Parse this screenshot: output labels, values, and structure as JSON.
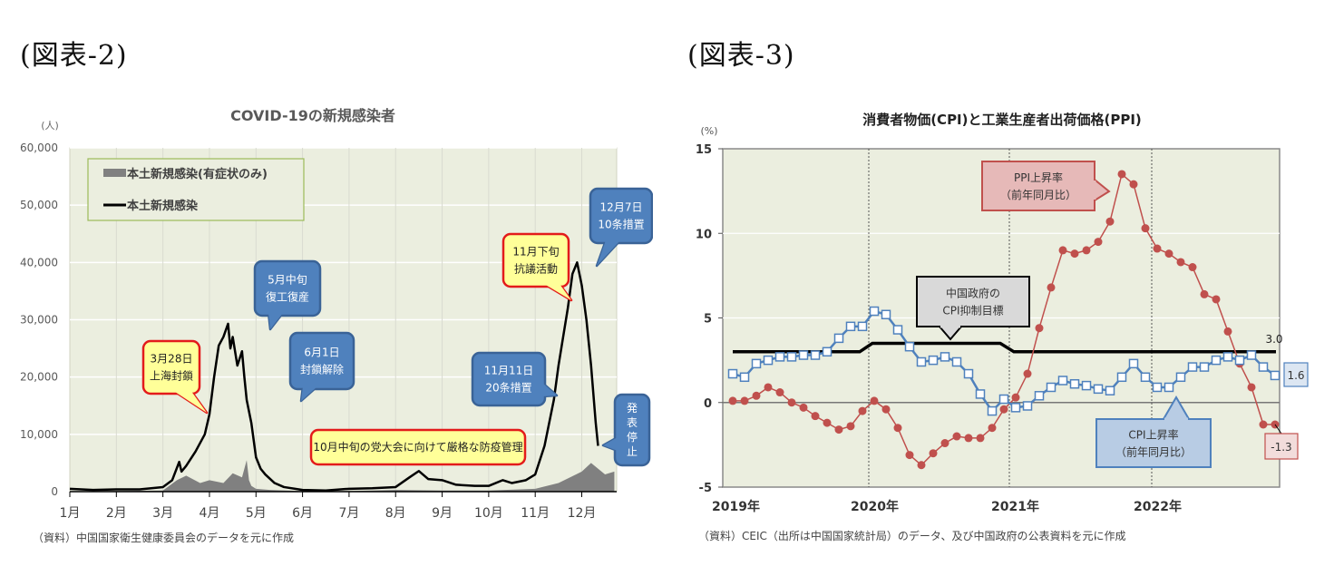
{
  "figures": [
    {
      "label": "(図表-2)"
    },
    {
      "label": "(図表-3)"
    }
  ],
  "chart_data": [
    {
      "type": "area+line",
      "title": "COVID-19の新規感染者",
      "ylabel": "(人)",
      "xlabel": "",
      "ylim": [
        0,
        60000
      ],
      "yticks": [
        "0",
        "10,000",
        "20,000",
        "30,000",
        "40,000",
        "50,000",
        "60,000"
      ],
      "categories": [
        "1月",
        "2月",
        "3月",
        "4月",
        "5月",
        "6月",
        "7月",
        "8月",
        "9月",
        "10月",
        "11月",
        "12月"
      ],
      "legend": [
        "本土新規感染(有症状のみ)",
        "本土新規感染"
      ],
      "legend_position": "top-left",
      "series": [
        {
          "name": "本土新規感染",
          "type": "line",
          "color": "#000000",
          "x_month": [
            1.0,
            1.5,
            2.0,
            2.5,
            3.0,
            3.2,
            3.35,
            3.4,
            3.5,
            3.7,
            3.9,
            4.0,
            4.1,
            4.2,
            4.3,
            4.4,
            4.45,
            4.5,
            4.6,
            4.7,
            4.75,
            4.8,
            4.9,
            5.0,
            5.1,
            5.2,
            5.4,
            5.6,
            6.0,
            6.5,
            7.0,
            7.5,
            8.0,
            8.3,
            8.5,
            8.7,
            9.0,
            9.3,
            9.7,
            10.0,
            10.3,
            10.5,
            10.8,
            11.0,
            11.2,
            11.4,
            11.5,
            11.6,
            11.7,
            11.8,
            11.9,
            12.0,
            12.1,
            12.2,
            12.3,
            12.35
          ],
          "values": [
            500,
            300,
            400,
            400,
            800,
            2000,
            5200,
            3500,
            4500,
            7000,
            10000,
            13500,
            20000,
            25500,
            27000,
            29300,
            25000,
            27000,
            22000,
            24500,
            20000,
            16000,
            12000,
            6000,
            4000,
            3000,
            1500,
            800,
            300,
            200,
            500,
            600,
            800,
            2500,
            3600,
            2200,
            2000,
            1200,
            1000,
            1000,
            2000,
            1500,
            2000,
            3000,
            8000,
            16000,
            22000,
            27000,
            32000,
            38000,
            40000,
            36000,
            30000,
            22000,
            12000,
            8000
          ]
        },
        {
          "name": "本土新規感染(有症状のみ)",
          "type": "area",
          "color": "#808080",
          "x_month": [
            1.0,
            3.0,
            3.3,
            3.5,
            3.8,
            4.0,
            4.3,
            4.5,
            4.7,
            4.8,
            4.85,
            4.9,
            5.0,
            5.3,
            6.0,
            7.0,
            8.0,
            9.0,
            10.0,
            11.0,
            11.5,
            12.0,
            12.2,
            12.5,
            12.7
          ],
          "values": [
            50,
            200,
            2000,
            2800,
            1500,
            2000,
            1500,
            3200,
            2500,
            5500,
            2000,
            1000,
            500,
            300,
            100,
            100,
            300,
            200,
            200,
            500,
            1500,
            3500,
            5000,
            3000,
            3500
          ]
        }
      ],
      "annotations": [
        {
          "text": [
            "3月28日",
            "上海封鎖"
          ],
          "style": "yellow"
        },
        {
          "text": [
            "5月中旬",
            "復工復産"
          ],
          "style": "blue"
        },
        {
          "text": [
            "6月1日",
            "封鎖解除"
          ],
          "style": "blue"
        },
        {
          "text": [
            "10月中旬の党大会に向けて厳格な防疫管理"
          ],
          "style": "yellow"
        },
        {
          "text": [
            "11月11日",
            "20条措置"
          ],
          "style": "blue"
        },
        {
          "text": [
            "11月下旬",
            "抗議活動"
          ],
          "style": "yellow"
        },
        {
          "text": [
            "12月7日",
            "10条措置"
          ],
          "style": "blue"
        },
        {
          "text": [
            "発",
            "表",
            "停",
            "止"
          ],
          "style": "blue"
        }
      ],
      "source": "（資料）中国国家衛生健康委員会のデータを元に作成"
    },
    {
      "type": "line",
      "title": "消費者物価(CPI)と工業生産者出荷価格(PPI)",
      "ylabel": "(%)",
      "xlabel": "",
      "ylim": [
        -5,
        15
      ],
      "yticks": [
        "-5",
        "0",
        "5",
        "10",
        "15"
      ],
      "categories": [
        "2019年",
        "2020年",
        "2021年",
        "2022年"
      ],
      "grid": true,
      "series": [
        {
          "name": "CPI上昇率(前年同月比)",
          "color": "#4f81bd",
          "marker": "open-square",
          "values": [
            1.7,
            1.5,
            2.3,
            2.5,
            2.7,
            2.7,
            2.8,
            2.8,
            3.0,
            3.8,
            4.5,
            4.5,
            5.4,
            5.2,
            4.3,
            3.3,
            2.4,
            2.5,
            2.7,
            2.4,
            1.7,
            0.5,
            -0.5,
            0.2,
            -0.3,
            -0.2,
            0.4,
            0.9,
            1.3,
            1.1,
            1.0,
            0.8,
            0.7,
            1.5,
            2.3,
            1.5,
            0.9,
            0.9,
            1.5,
            2.1,
            2.1,
            2.5,
            2.7,
            2.5,
            2.8,
            2.1,
            1.6
          ],
          "end_label": "1.6"
        },
        {
          "name": "PPI上昇率(前年同月比)",
          "color": "#c0504d",
          "marker": "filled-circle",
          "values": [
            0.1,
            0.1,
            0.4,
            0.9,
            0.6,
            0.0,
            -0.3,
            -0.8,
            -1.2,
            -1.6,
            -1.4,
            -0.5,
            0.1,
            -0.4,
            -1.5,
            -3.1,
            -3.7,
            -3.0,
            -2.4,
            -2.0,
            -2.1,
            -2.1,
            -1.5,
            -0.4,
            0.3,
            1.7,
            4.4,
            6.8,
            9.0,
            8.8,
            9.0,
            9.5,
            10.7,
            13.5,
            12.9,
            10.3,
            9.1,
            8.8,
            8.3,
            8.0,
            6.4,
            6.1,
            4.2,
            2.3,
            0.9,
            -1.3,
            -1.3
          ],
          "end_label": "-1.3"
        },
        {
          "name": "中国政府のCPI抑制目標",
          "color": "#000000",
          "values_by_year": {
            "2019": 3.0,
            "2020": 3.5,
            "2021": 3.0,
            "2022": 3.0
          },
          "end_label": "3.0"
        }
      ],
      "annotations": [
        {
          "text": [
            "PPI上昇率",
            "（前年同月比）"
          ],
          "style": "red"
        },
        {
          "text": [
            "中国政府の",
            "CPI抑制目標"
          ],
          "style": "gray"
        },
        {
          "text": [
            "CPI上昇率",
            "（前年同月比）"
          ],
          "style": "blue"
        }
      ],
      "source": "（資料）CEIC（出所は中国国家統計局）のデータ、及び中国政府の公表資料を元に作成"
    }
  ],
  "colors": {
    "plot_bg": "#ebeedf",
    "plot_bg2": "#eceedf",
    "blue_callout": "#4f81bd",
    "yellow_callout": "#ffff99",
    "red_border": "#e31b1b",
    "ppi_red": "#c0504d",
    "cpi_blue": "#4f81bd"
  }
}
